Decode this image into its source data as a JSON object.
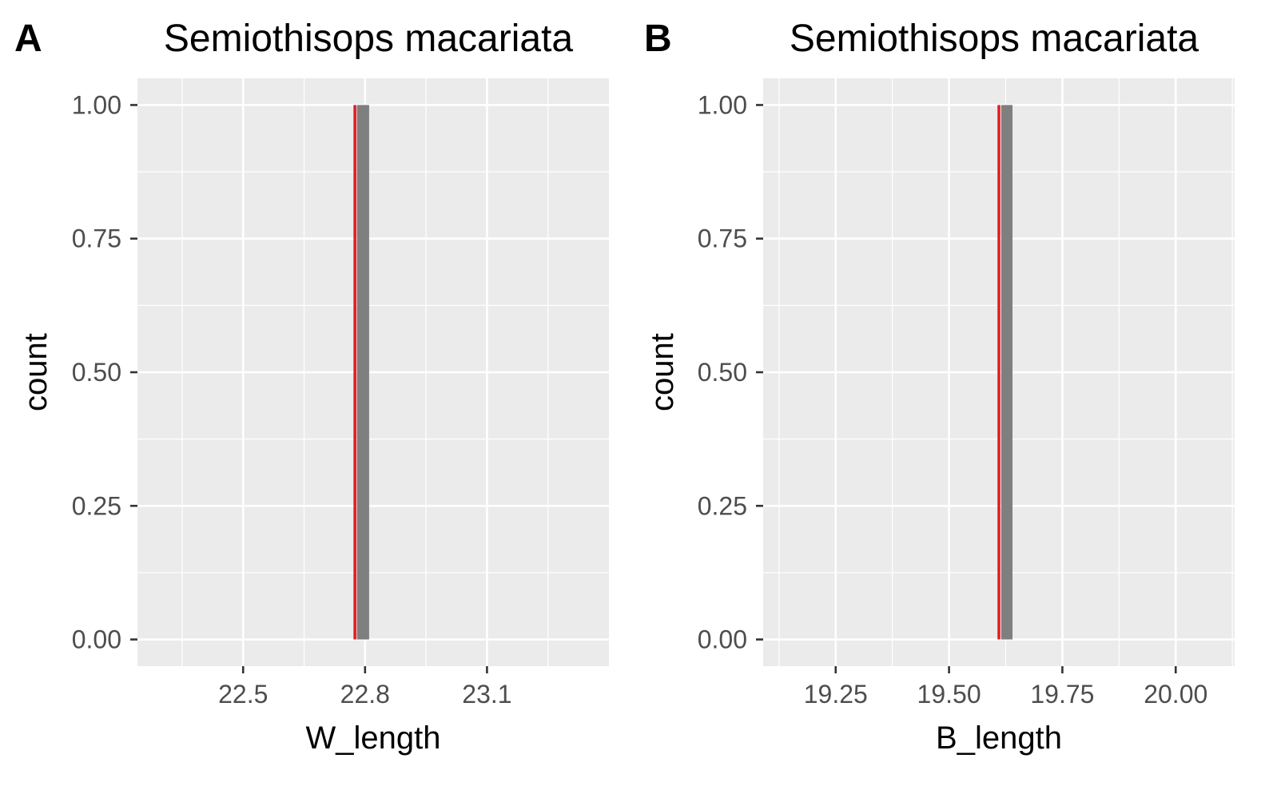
{
  "chart_data": [
    {
      "panel": "A",
      "type": "bar",
      "title": "Semiothisops macariata",
      "xlabel": "W_length",
      "ylabel": "count",
      "xlim": [
        22.24,
        23.4
      ],
      "ylim": [
        -0.05,
        1.05
      ],
      "x_ticks": [
        22.5,
        22.8,
        23.1
      ],
      "x_tick_labels": [
        "22.5",
        "22.8",
        "23.1"
      ],
      "y_ticks": [
        0,
        0.25,
        0.5,
        0.75,
        1
      ],
      "y_tick_labels": [
        "0.00",
        "0.25",
        "0.50",
        "0.75",
        "1.00"
      ],
      "bars": [
        {
          "x_start": 22.78,
          "x_end": 22.81,
          "value": 1
        }
      ],
      "vline": {
        "x": 22.775,
        "color": "#e41a1c"
      },
      "grid": true,
      "panel_background": "#ebebeb",
      "bar_color": "#7f7f7f"
    },
    {
      "panel": "B",
      "type": "bar",
      "title": "Semiothisops macariata",
      "xlabel": "B_length",
      "ylabel": "count",
      "xlim": [
        19.09,
        20.13
      ],
      "ylim": [
        -0.05,
        1.05
      ],
      "x_ticks": [
        19.25,
        19.5,
        19.75,
        20.0
      ],
      "x_tick_labels": [
        "19.25",
        "19.50",
        "19.75",
        "20.00"
      ],
      "y_ticks": [
        0,
        0.25,
        0.5,
        0.75,
        1
      ],
      "y_tick_labels": [
        "0.00",
        "0.25",
        "0.50",
        "0.75",
        "1.00"
      ],
      "bars": [
        {
          "x_start": 19.615,
          "x_end": 19.64,
          "value": 1
        }
      ],
      "vline": {
        "x": 19.61,
        "color": "#e41a1c"
      },
      "grid": true,
      "panel_background": "#ebebeb",
      "bar_color": "#7f7f7f"
    }
  ]
}
